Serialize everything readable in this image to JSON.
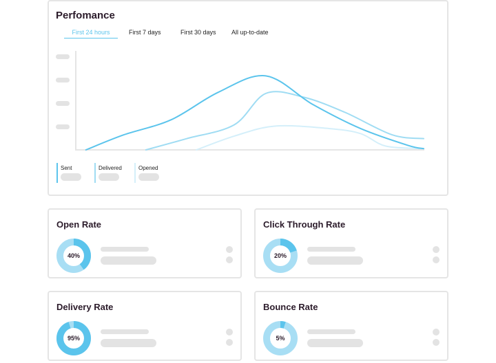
{
  "performance": {
    "title": "Perfomance",
    "tabs": [
      "First 24 hours",
      "First 7 days",
      "First 30 days",
      "All up-to-date"
    ],
    "active_tab": 0,
    "legend": [
      {
        "label": "Sent",
        "color": "#5bc4ec"
      },
      {
        "label": "Delivered",
        "color": "#9fdcf3"
      },
      {
        "label": "Opened",
        "color": "#d4effa"
      }
    ]
  },
  "chart_data": {
    "type": "line",
    "xlim": [
      0,
      11
    ],
    "ylim": [
      0,
      4
    ],
    "grid": false,
    "ytick_labels": "placeholder",
    "series": [
      {
        "name": "Sent",
        "color": "#5bc4ec",
        "x": [
          0.3,
          1.5,
          3.0,
          4.5,
          6.0,
          7.5,
          9.0,
          10.5,
          11.0
        ],
        "y": [
          0.0,
          0.6,
          1.2,
          2.3,
          2.95,
          1.8,
          0.85,
          0.18,
          0.05
        ]
      },
      {
        "name": "Delivered",
        "color": "#9fdcf3",
        "x": [
          2.2,
          3.5,
          5.0,
          6.0,
          7.2,
          8.5,
          10.0,
          11.0
        ],
        "y": [
          0.0,
          0.45,
          1.0,
          2.25,
          2.1,
          1.5,
          0.6,
          0.45
        ]
      },
      {
        "name": "Opened",
        "color": "#d4effa",
        "x": [
          3.8,
          5.0,
          6.3,
          8.0,
          9.0,
          9.8,
          11.0
        ],
        "y": [
          0.0,
          0.55,
          0.95,
          0.85,
          0.65,
          0.15,
          0.05
        ]
      }
    ]
  },
  "metrics": [
    {
      "id": "m-open",
      "title": "Open Rate",
      "value_label": "40%",
      "percent": 40
    },
    {
      "id": "m-ctr",
      "title": "Click Through Rate",
      "value_label": "20%",
      "percent": 20
    },
    {
      "id": "m-del",
      "title": "Delivery Rate",
      "value_label": "95%",
      "percent": 95
    },
    {
      "id": "m-bounce",
      "title": "Bounce Rate",
      "value_label": "5%",
      "percent": 5
    }
  ],
  "colors": {
    "accent": "#5bc4ec",
    "donut_track": "#a8def4",
    "placeholder": "#e3e3e3",
    "border": "#e5e5e5",
    "heading": "#2b1b2a"
  }
}
